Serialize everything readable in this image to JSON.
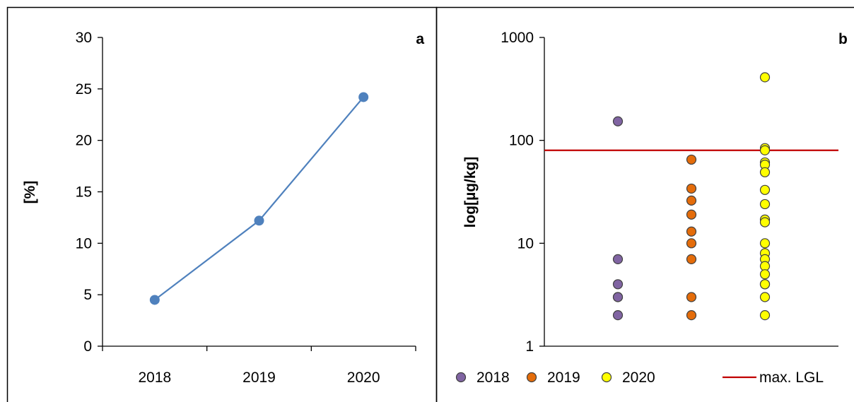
{
  "chart_data": [
    {
      "type": "line",
      "panel_label": "a",
      "categories": [
        "2018",
        "2019",
        "2020"
      ],
      "series": [
        {
          "values": [
            4.5,
            12.2,
            24.2
          ],
          "color": "#4f81bd"
        }
      ],
      "xlabel": "",
      "ylabel": "[%]",
      "ylim": [
        0,
        30
      ],
      "yticks": [
        "0",
        "5",
        "10",
        "15",
        "20",
        "25",
        "30"
      ],
      "grid": false,
      "legend": "none"
    },
    {
      "type": "scatter",
      "panel_label": "b",
      "yscale": "log",
      "ylabel": "log[µg/kg]",
      "ylim": [
        1,
        1000
      ],
      "yticks": [
        "1",
        "10",
        "100",
        "1000"
      ],
      "grid": false,
      "legend": "bottom",
      "series": [
        {
          "name": "2018",
          "color": "#8064a2",
          "values": [
            153,
            7,
            4,
            3,
            3,
            2
          ]
        },
        {
          "name": "2019",
          "color": "#e46c0a",
          "values": [
            65,
            34,
            26,
            19,
            13,
            10,
            7,
            3,
            2
          ]
        },
        {
          "name": "2020",
          "color": "#ffff00",
          "values": [
            410,
            84,
            80,
            61,
            58,
            49,
            33,
            24,
            17,
            16,
            10,
            8,
            7,
            6,
            5,
            4,
            4,
            3,
            2
          ]
        }
      ],
      "reference_line": {
        "name": "max. LGL",
        "value": 80,
        "color": "#c00000"
      }
    }
  ]
}
